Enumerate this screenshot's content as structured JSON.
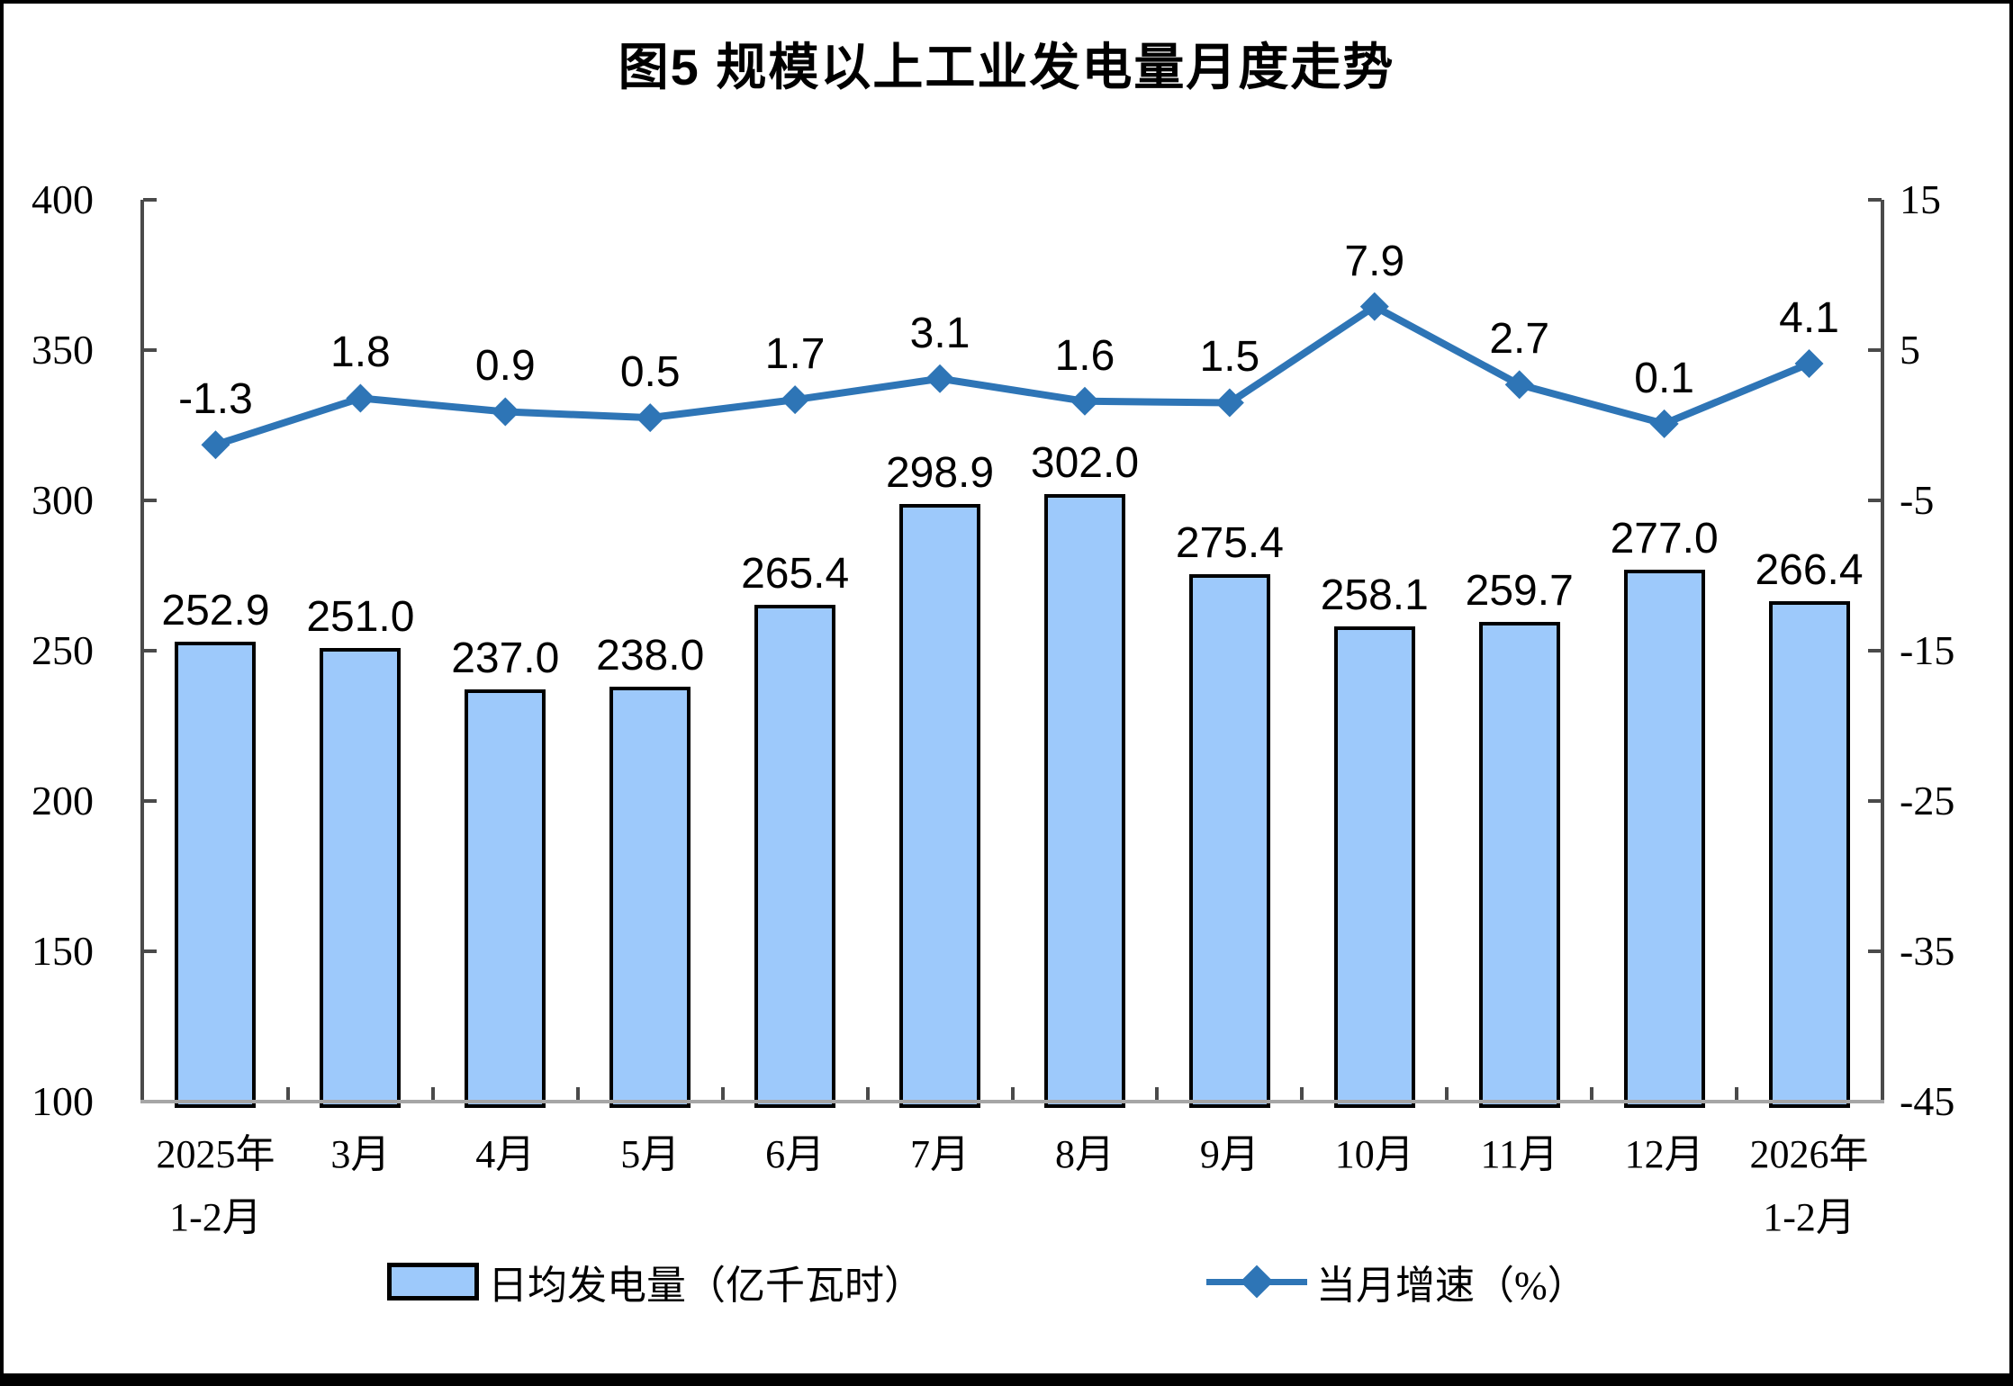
{
  "figure": {
    "title": "图5 规模以上工业发电量月度走势"
  },
  "chart_data": {
    "type": "combo",
    "title": "图5 规模以上工业发电量月度走势",
    "categories": [
      "2025年\n1-2月",
      "3月",
      "4月",
      "5月",
      "6月",
      "7月",
      "8月",
      "9月",
      "10月",
      "11月",
      "12月",
      "2026年\n1-2月"
    ],
    "series": [
      {
        "name": "日均发电量（亿千瓦时）",
        "type": "bar",
        "axis": "left",
        "values": [
          252.9,
          251.0,
          237.0,
          238.0,
          265.4,
          298.9,
          302.0,
          275.4,
          258.1,
          259.7,
          277.0,
          266.4
        ],
        "fill_color": "#9DC9FB",
        "border_color": "#000000"
      },
      {
        "name": "当月增速（%）",
        "type": "line",
        "axis": "right",
        "values": [
          -1.3,
          1.8,
          0.9,
          0.5,
          1.7,
          3.1,
          1.6,
          1.5,
          7.9,
          2.7,
          0.1,
          4.1
        ],
        "color": "#2E75B6",
        "marker": "diamond"
      }
    ],
    "left_axis": {
      "min": 100,
      "max": 400,
      "ticks": [
        400,
        350,
        300,
        250,
        200,
        150,
        100
      ]
    },
    "right_axis": {
      "min": -45,
      "max": 15,
      "ticks": [
        15,
        5,
        -5,
        -15,
        -25,
        -35,
        -45
      ]
    },
    "value_labels": "on",
    "grid": "off",
    "legend_position": "bottom"
  },
  "colors": {
    "axis_line": "#4a4a4a",
    "baseline": "#a6a6a6",
    "text": "#000000"
  }
}
